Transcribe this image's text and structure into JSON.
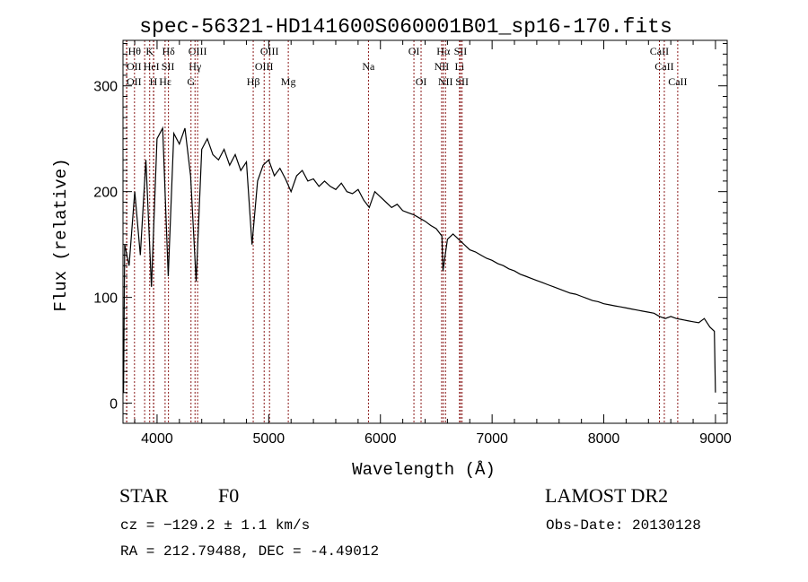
{
  "chart_data": {
    "type": "line",
    "title": "spec-56321-HD141600S060001B01_sp16-170.fits",
    "xlabel": "Wavelength (Å)",
    "ylabel": "Flux (relative)",
    "xlim": [
      3695,
      9105
    ],
    "ylim": [
      -19,
      343
    ],
    "xticks": [
      4000,
      5000,
      6000,
      7000,
      8000,
      9000
    ],
    "xtick_labels": [
      "4000",
      "5000",
      "6000",
      "7000",
      "8000",
      "9000"
    ],
    "yticks": [
      0,
      100,
      200,
      300
    ],
    "ytick_labels": [
      "0",
      "100",
      "200",
      "300"
    ],
    "grid": false,
    "series": [
      {
        "name": "flux",
        "x": [
          3700,
          3710,
          3750,
          3800,
          3850,
          3900,
          3950,
          4000,
          4050,
          4100,
          4150,
          4200,
          4250,
          4300,
          4350,
          4400,
          4450,
          4500,
          4550,
          4600,
          4650,
          4700,
          4750,
          4800,
          4850,
          4900,
          4950,
          5000,
          5050,
          5100,
          5150,
          5200,
          5250,
          5300,
          5350,
          5400,
          5450,
          5500,
          5550,
          5600,
          5650,
          5700,
          5750,
          5800,
          5850,
          5900,
          5950,
          6000,
          6050,
          6100,
          6150,
          6200,
          6250,
          6300,
          6350,
          6400,
          6450,
          6500,
          6550,
          6560,
          6600,
          6650,
          6700,
          6750,
          6800,
          6850,
          6900,
          6950,
          7000,
          7050,
          7100,
          7150,
          7200,
          7250,
          7300,
          7350,
          7400,
          7450,
          7500,
          7550,
          7600,
          7650,
          7700,
          7750,
          7800,
          7850,
          7900,
          7950,
          8000,
          8050,
          8100,
          8150,
          8200,
          8250,
          8300,
          8350,
          8400,
          8450,
          8500,
          8550,
          8600,
          8650,
          8700,
          8750,
          8800,
          8850,
          8900,
          8950,
          8990,
          9000
        ],
        "y": [
          10,
          150,
          130,
          200,
          140,
          230,
          110,
          250,
          260,
          120,
          255,
          245,
          260,
          215,
          115,
          240,
          250,
          235,
          230,
          240,
          225,
          235,
          220,
          228,
          150,
          210,
          225,
          230,
          215,
          222,
          212,
          200,
          215,
          220,
          210,
          212,
          205,
          210,
          205,
          202,
          208,
          200,
          198,
          202,
          192,
          185,
          200,
          195,
          190,
          185,
          188,
          182,
          180,
          178,
          175,
          172,
          168,
          165,
          158,
          125,
          155,
          160,
          155,
          150,
          145,
          143,
          140,
          137,
          135,
          132,
          130,
          127,
          125,
          122,
          120,
          118,
          116,
          114,
          112,
          110,
          108,
          106,
          104,
          103,
          101,
          99,
          97,
          96,
          94,
          93,
          92,
          91,
          90,
          89,
          88,
          87,
          86,
          85,
          82,
          80,
          82,
          80,
          79,
          78,
          77,
          76,
          80,
          72,
          68,
          10
        ]
      }
    ],
    "lines": [
      {
        "name": "Hθ",
        "wave": 3798,
        "row": 1
      },
      {
        "name": "K",
        "wave": 3934,
        "row": 1
      },
      {
        "name": "Hδ",
        "wave": 4102,
        "row": 1
      },
      {
        "name": "OIII",
        "wave": 4363,
        "row": 1
      },
      {
        "name": "OIII",
        "wave": 5007,
        "row": 1
      },
      {
        "name": "OI",
        "wave": 6300,
        "row": 1
      },
      {
        "name": "Hα",
        "wave": 6563,
        "row": 1
      },
      {
        "name": "SII",
        "wave": 6717,
        "row": 1
      },
      {
        "name": "CaII",
        "wave": 8498,
        "row": 1
      },
      {
        "name": "OII",
        "wave": 3727,
        "row": 2
      },
      {
        "name": "HeI",
        "wave": 3889,
        "row": 2
      },
      {
        "name": "SII",
        "wave": 4072,
        "row": 2
      },
      {
        "name": "Hγ",
        "wave": 4340,
        "row": 2
      },
      {
        "name": "OIII",
        "wave": 4959,
        "row": 2
      },
      {
        "name": "Na",
        "wave": 5893,
        "row": 2
      },
      {
        "name": "NII",
        "wave": 6548,
        "row": 2
      },
      {
        "name": "Li",
        "wave": 6708,
        "row": 2
      },
      {
        "name": "CaII",
        "wave": 8542,
        "row": 2
      },
      {
        "name": "OII",
        "wave": 3729,
        "row": 3
      },
      {
        "name": "Hε",
        "wave": 3970,
        "row": 3
      },
      {
        "name": "H",
        "wave": 3968,
        "row": 3
      },
      {
        "name": "G",
        "wave": 4304,
        "row": 3
      },
      {
        "name": "Hβ",
        "wave": 4861,
        "row": 3
      },
      {
        "name": "Mg",
        "wave": 5175,
        "row": 3
      },
      {
        "name": "OI",
        "wave": 6364,
        "row": 3
      },
      {
        "name": "NII",
        "wave": 6583,
        "row": 3
      },
      {
        "name": "SII",
        "wave": 6731,
        "row": 3
      },
      {
        "name": "CaII",
        "wave": 8662,
        "row": 3
      }
    ],
    "colors": {
      "spectrum": "#000000",
      "lines": "#8b1a1a",
      "axes": "#000000"
    }
  },
  "info": {
    "class": "STAR",
    "subclass": "F0",
    "survey": "LAMOST DR2",
    "cz": "cz = −129.2 ± 1.1 km/s",
    "obs_date": "Obs-Date: 20130128",
    "radec": "RA = 212.79488, DEC =  -4.49012"
  }
}
